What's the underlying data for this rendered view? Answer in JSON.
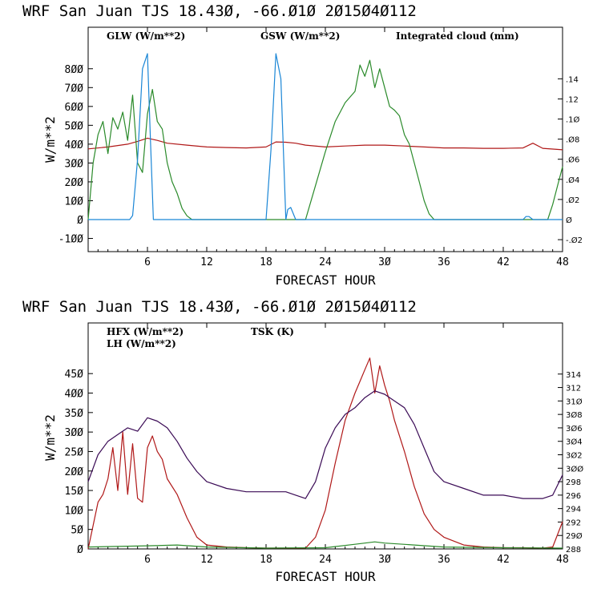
{
  "colors": {
    "red": "#b01818",
    "green": "#2a8a2a",
    "blue": "#1a86d6",
    "purple": "#3a0a55"
  },
  "chart_data": [
    {
      "type": "line",
      "title": "WRF  San Juan TJS  18.43Ø, -66.Ø1Ø  2Ø15Ø4Ø112",
      "xlabel": "FORECAST HOUR",
      "ylabel": "W/m**2",
      "xlim": [
        0,
        48
      ],
      "ylim": [
        -170,
        1020
      ],
      "y2lim": [
        -0.0319,
        0.1913
      ],
      "xticks": [
        6,
        12,
        18,
        24,
        30,
        36,
        42,
        48
      ],
      "xtick_labels": [
        "6",
        "12",
        "18",
        "24",
        "3Ø",
        "36",
        "42",
        "48"
      ],
      "yticks": [
        -100,
        0,
        100,
        200,
        300,
        400,
        500,
        600,
        700,
        800
      ],
      "ytick_labels": [
        "-1ØØ",
        "Ø",
        "1ØØ",
        "2ØØ",
        "3ØØ",
        "4ØØ",
        "5ØØ",
        "6ØØ",
        "7ØØ",
        "8ØØ"
      ],
      "y2ticks": [
        -0.02,
        0,
        0.02,
        0.04,
        0.06,
        0.08,
        0.1,
        0.12,
        0.14
      ],
      "y2tick_labels": [
        "-.Ø2",
        "Ø",
        ".Ø2",
        ".Ø4",
        ".Ø6",
        ".Ø8",
        ".1Ø",
        ".12",
        ".14"
      ],
      "series": [
        {
          "name": "GLW (W/m**2)",
          "color": "red",
          "axis": "left",
          "x": [
            0,
            2,
            4,
            5,
            6,
            7,
            8,
            10,
            12,
            14,
            16,
            18,
            19,
            20,
            21,
            22,
            24,
            26,
            28,
            30,
            32,
            34,
            36,
            38,
            40,
            42,
            44,
            45,
            46,
            48
          ],
          "values": [
            375,
            385,
            400,
            415,
            432,
            420,
            405,
            395,
            385,
            382,
            380,
            385,
            412,
            410,
            405,
            395,
            385,
            390,
            395,
            395,
            390,
            385,
            380,
            380,
            378,
            378,
            380,
            405,
            378,
            370
          ]
        },
        {
          "name": "GSW (W/m**2)",
          "color": "green",
          "axis": "left",
          "x": [
            0,
            0.5,
            1,
            1.5,
            2,
            2.5,
            3,
            3.5,
            4,
            4.5,
            5,
            5.5,
            6,
            6.5,
            7,
            7.5,
            8,
            8.5,
            9,
            9.5,
            10,
            10.5,
            11,
            22,
            23,
            24,
            25,
            26,
            27,
            27.5,
            28,
            28.5,
            29,
            29.5,
            30,
            30.5,
            31,
            31.5,
            32,
            32.5,
            33,
            33.5,
            34,
            34.5,
            35,
            46.5,
            47,
            47.5,
            48
          ],
          "values": [
            0,
            300,
            450,
            520,
            350,
            540,
            480,
            570,
            420,
            660,
            300,
            250,
            560,
            690,
            520,
            480,
            300,
            200,
            140,
            60,
            20,
            0,
            0,
            0,
            180,
            360,
            520,
            620,
            680,
            820,
            760,
            845,
            700,
            800,
            700,
            600,
            580,
            550,
            450,
            400,
            300,
            200,
            100,
            30,
            0,
            0,
            80,
            180,
            280
          ]
        },
        {
          "name": "Integrated cloud (mm)",
          "color": "blue",
          "axis": "right",
          "x": [
            0,
            4.2,
            4.5,
            5,
            5.5,
            6,
            6.3,
            6.6,
            7,
            18,
            18.5,
            19,
            19.5,
            20,
            20.2,
            20.5,
            21,
            21.5,
            44,
            44.3,
            44.6,
            45,
            48
          ],
          "values": [
            0,
            0,
            0.004,
            0.06,
            0.15,
            0.165,
            0.08,
            0,
            0,
            0,
            0.07,
            0.165,
            0.14,
            0,
            0.01,
            0.012,
            0,
            0,
            0,
            0.003,
            0.003,
            0,
            0
          ]
        }
      ]
    },
    {
      "type": "line",
      "title": "WRF  San Juan TJS  18.43Ø, -66.Ø1Ø  2Ø15Ø4Ø112",
      "xlabel": "FORECAST HOUR",
      "ylabel": "W/m**2",
      "xlim": [
        0,
        48
      ],
      "ylim": [
        0,
        580
      ],
      "y2lim": [
        288,
        321.6
      ],
      "xticks": [
        6,
        12,
        18,
        24,
        30,
        36,
        42,
        48
      ],
      "xtick_labels": [
        "6",
        "12",
        "18",
        "24",
        "3Ø",
        "36",
        "42",
        "48"
      ],
      "yticks": [
        0,
        50,
        100,
        150,
        200,
        250,
        300,
        350,
        400,
        450
      ],
      "ytick_labels": [
        "Ø",
        "5Ø",
        "1ØØ",
        "15Ø",
        "2ØØ",
        "25Ø",
        "3ØØ",
        "35Ø",
        "4ØØ",
        "45Ø"
      ],
      "y2ticks": [
        288,
        290,
        292,
        294,
        296,
        298,
        300,
        302,
        304,
        306,
        308,
        310,
        312,
        314
      ],
      "y2tick_labels": [
        "288",
        "29Ø",
        "292",
        "294",
        "296",
        "298",
        "3ØØ",
        "3Ø2",
        "3Ø4",
        "3Ø6",
        "3Ø8",
        "31Ø",
        "312",
        "314"
      ],
      "series": [
        {
          "name": "HFX (W/m**2)",
          "color": "red",
          "axis": "left",
          "x": [
            0,
            0.5,
            1,
            1.5,
            2,
            2.5,
            3,
            3.5,
            4,
            4.5,
            5,
            5.5,
            6,
            6.5,
            7,
            7.5,
            8,
            9,
            10,
            11,
            12,
            14,
            16,
            18,
            20,
            21,
            22,
            23,
            24,
            25,
            26,
            27,
            27.5,
            28,
            28.5,
            29,
            29.5,
            30,
            30.5,
            31,
            32,
            33,
            34,
            35,
            36,
            38,
            40,
            42,
            44,
            46,
            47,
            48
          ],
          "values": [
            0,
            60,
            120,
            140,
            180,
            260,
            150,
            300,
            140,
            270,
            130,
            120,
            260,
            290,
            250,
            230,
            180,
            140,
            80,
            30,
            10,
            5,
            3,
            2,
            2,
            2,
            2,
            30,
            100,
            220,
            330,
            400,
            430,
            460,
            490,
            400,
            470,
            420,
            380,
            330,
            250,
            160,
            90,
            50,
            30,
            10,
            5,
            3,
            3,
            2,
            5,
            70
          ]
        },
        {
          "name": "LH (W/m**2)",
          "color": "green",
          "axis": "left",
          "x": [
            0,
            6,
            9,
            12,
            18,
            24,
            27,
            29,
            30,
            33,
            36,
            42,
            48
          ],
          "values": [
            5,
            8,
            10,
            5,
            2,
            3,
            12,
            18,
            15,
            10,
            5,
            3,
            2
          ]
        },
        {
          "name": "TSK (K)",
          "color": "purple",
          "axis": "right",
          "x": [
            0,
            1,
            2,
            3,
            4,
            5,
            6,
            7,
            8,
            9,
            10,
            11,
            12,
            14,
            16,
            18,
            20,
            21,
            22,
            23,
            24,
            25,
            26,
            27,
            28,
            29,
            30,
            31,
            32,
            33,
            34,
            35,
            36,
            38,
            40,
            42,
            44,
            46,
            47,
            48
          ],
          "values": [
            298,
            302,
            304,
            305,
            306,
            305.5,
            307.5,
            307,
            306,
            304,
            301.5,
            299.5,
            298,
            297,
            296.5,
            296.5,
            296.5,
            296,
            295.5,
            298,
            303,
            306,
            308,
            309,
            310.5,
            311.5,
            311,
            310,
            309,
            306.5,
            303,
            299.5,
            298,
            297,
            296,
            296,
            295.5,
            295.5,
            296,
            299
          ]
        }
      ]
    }
  ]
}
